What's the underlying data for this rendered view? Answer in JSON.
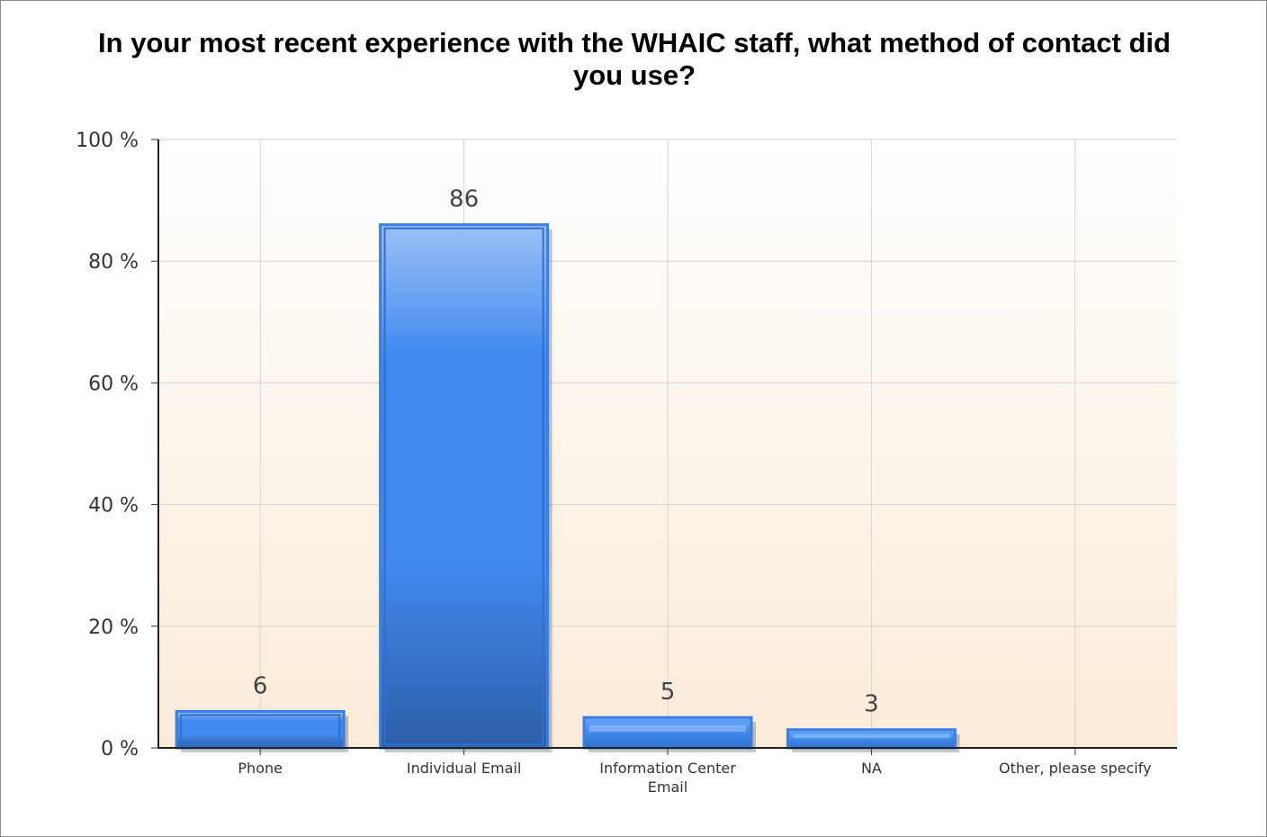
{
  "chart_data": {
    "type": "bar",
    "title": "In your most recent experience with the WHAIC staff, what method of contact did you use?",
    "categories": [
      "Phone",
      "Individual Email",
      "Information Center Email",
      "NA",
      "Other, please specify"
    ],
    "category_lines": [
      [
        "Phone"
      ],
      [
        "Individual Email"
      ],
      [
        "Information Center",
        "Email"
      ],
      [
        "NA"
      ],
      [
        "Other, please specify"
      ]
    ],
    "values": [
      6,
      86,
      5,
      3,
      0
    ],
    "value_labels": [
      "6",
      "86",
      "5",
      "3",
      ""
    ],
    "ylim": [
      0,
      100
    ],
    "yticks": [
      0,
      20,
      40,
      60,
      80,
      100
    ],
    "ytick_labels": [
      "0 %",
      "20 %",
      "40 %",
      "60 %",
      "80 %",
      "100 %"
    ],
    "xlabel": "",
    "ylabel": "",
    "grid": true,
    "colors": {
      "bar_top": "#9cc2f7",
      "bar_mid": "#4189ee",
      "bar_bottom": "#2c5ea8",
      "bar_edge": "#3a7fe6",
      "bg_top": "#ffffff",
      "bg_bottom": "#faebd7",
      "grid": "#d4d4d4"
    }
  }
}
